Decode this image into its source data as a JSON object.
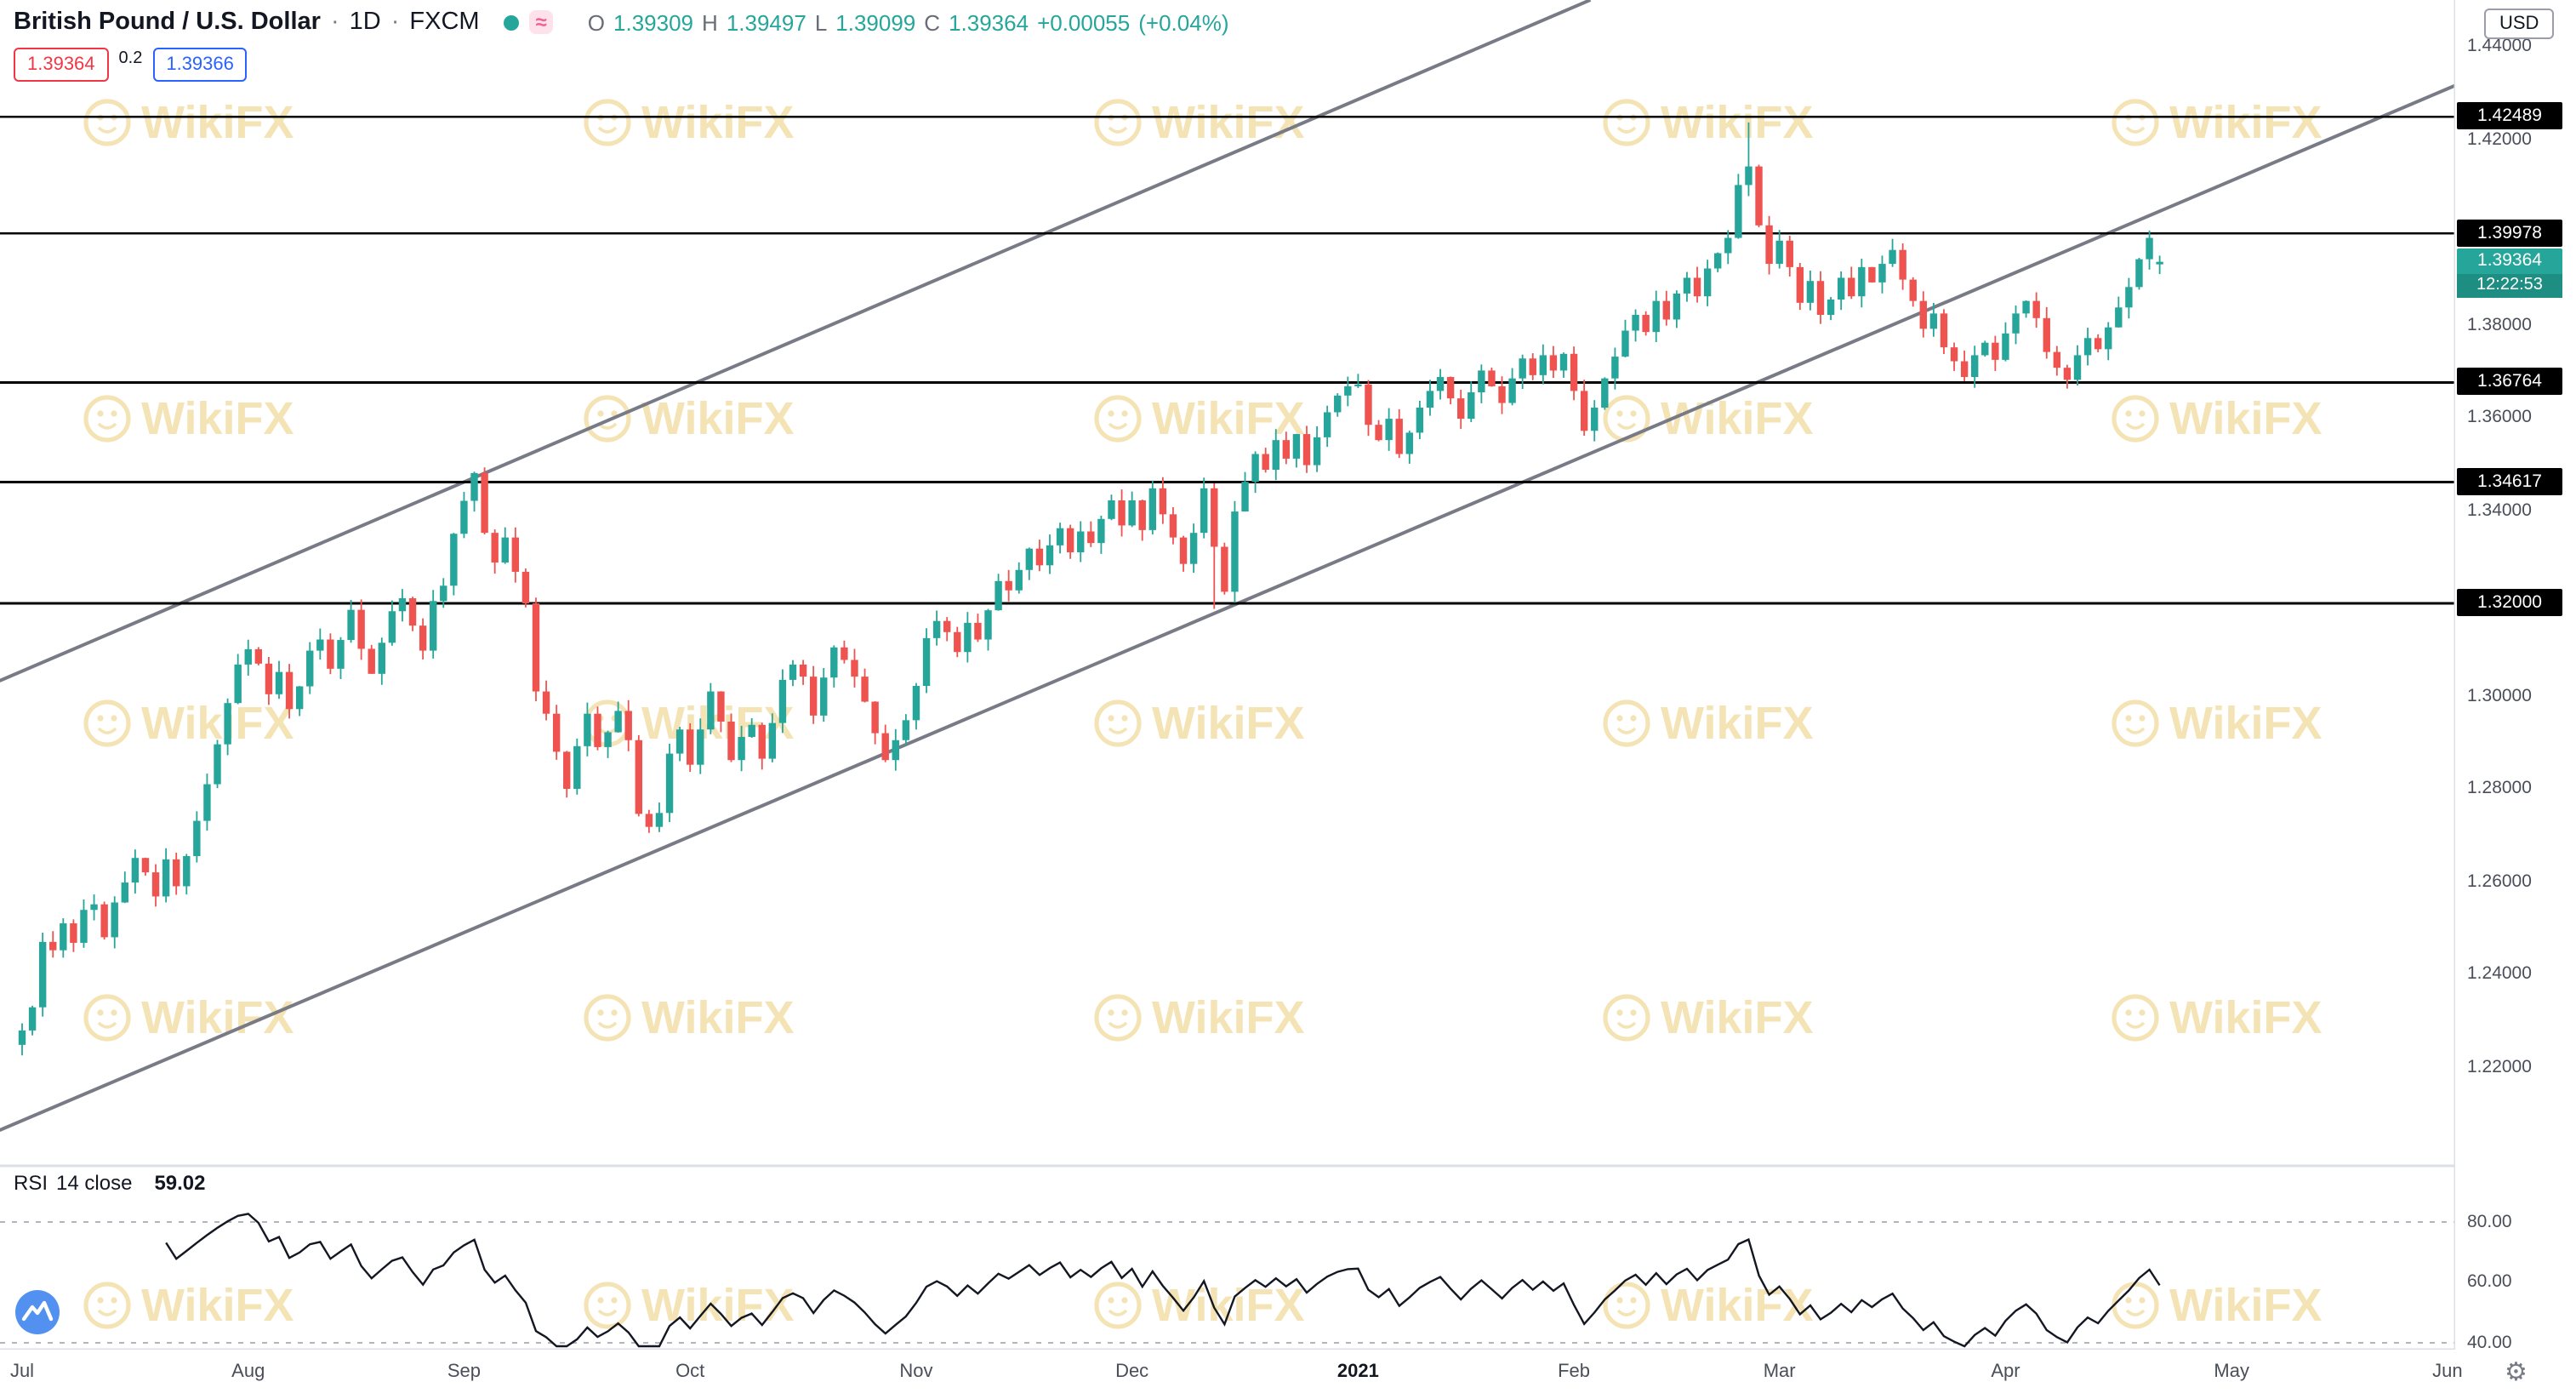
{
  "header": {
    "symbol": "British Pound / U.S. Dollar",
    "separator": "·",
    "interval": "1D",
    "exchange": "FXCM",
    "approx_symbol": "≈",
    "ohlc": {
      "o_label": "O",
      "open": "1.39309",
      "h_label": "H",
      "high": "1.39497",
      "l_label": "L",
      "low": "1.39099",
      "c_label": "C",
      "close": "1.39364",
      "change": "+0.00055",
      "change_pct": "(+0.04%)"
    },
    "sell": "1.39364",
    "spread": "0.2",
    "buy": "1.39366"
  },
  "axis_right": {
    "currency": "USD",
    "ticks": [
      {
        "label": "1.44000",
        "price": 1.44
      },
      {
        "label": "1.42000",
        "price": 1.42
      },
      {
        "label": "1.38000",
        "price": 1.38
      },
      {
        "label": "1.36000",
        "price": 1.36
      },
      {
        "label": "1.34000",
        "price": 1.34
      },
      {
        "label": "1.30000",
        "price": 1.3
      },
      {
        "label": "1.28000",
        "price": 1.28
      },
      {
        "label": "1.26000",
        "price": 1.26
      },
      {
        "label": "1.24000",
        "price": 1.24
      },
      {
        "label": "1.22000",
        "price": 1.22
      }
    ],
    "current": {
      "label": "1.39364",
      "countdown": "12:22:53",
      "price": 1.39364
    }
  },
  "time_axis": {
    "labels": [
      {
        "label": "Jul",
        "day": 0
      },
      {
        "label": "Aug",
        "day": 22
      },
      {
        "label": "Sep",
        "day": 43
      },
      {
        "label": "Oct",
        "day": 65
      },
      {
        "label": "Nov",
        "day": 87
      },
      {
        "label": "Dec",
        "day": 108
      },
      {
        "label": "2021",
        "day": 130,
        "bold": true
      },
      {
        "label": "Feb",
        "day": 151
      },
      {
        "label": "Mar",
        "day": 171
      },
      {
        "label": "Apr",
        "day": 193
      },
      {
        "label": "May",
        "day": 215
      },
      {
        "label": "Jun",
        "day": 236
      }
    ]
  },
  "rsi": {
    "title": "RSI",
    "params": "14 close",
    "value": "59.02",
    "grid": [
      {
        "label": "80.00",
        "v": 80,
        "dashed": true
      },
      {
        "label": "60.00",
        "v": 60,
        "dashed": false
      },
      {
        "label": "40.00",
        "v": 40,
        "dashed": true
      }
    ]
  },
  "watermark": {
    "text": "WikiFX",
    "color": "#f4e3b4"
  },
  "icons": {
    "gear": "⚙"
  },
  "colors": {
    "up": "#26a69a",
    "down": "#ef5350",
    "trend": "#787b86",
    "level": "#000000",
    "accent": "#26a69a"
  },
  "chart_data": {
    "type": "candlestick",
    "title": "British Pound / U.S. Dollar, 1D, FXCM",
    "x_range": "Jul 2020 - Jun 2021 (daily)",
    "y_range": [
      1.2013,
      1.4501
    ],
    "legend_position": "top-left",
    "grid": false,
    "first_open": 1.2248,
    "closes": [
      1.2279,
      1.2329,
      1.247,
      1.2452,
      1.251,
      1.2468,
      1.2539,
      1.2551,
      1.248,
      1.2555,
      1.2598,
      1.2651,
      1.262,
      1.2568,
      1.2648,
      1.259,
      1.2655,
      1.2731,
      1.281,
      1.2896,
      1.2985,
      1.3068,
      1.3101,
      1.307,
      1.3004,
      1.3052,
      1.2972,
      1.3021,
      1.3098,
      1.3122,
      1.3059,
      1.3121,
      1.3186,
      1.3102,
      1.3048,
      1.3115,
      1.3183,
      1.3211,
      1.3152,
      1.3098,
      1.3205,
      1.3238,
      1.335,
      1.3421,
      1.3481,
      1.3352,
      1.3288,
      1.3342,
      1.3268,
      1.32,
      1.301,
      1.2962,
      1.288,
      1.28,
      1.2892,
      1.2962,
      1.289,
      1.2922,
      1.2968,
      1.2905,
      1.2746,
      1.2718,
      1.2748,
      1.2876,
      1.2928,
      1.2852,
      1.2928,
      1.301,
      1.2945,
      1.2862,
      1.2912,
      1.2938,
      1.2865,
      1.2942,
      1.3035,
      1.3068,
      1.3042,
      1.2958,
      1.304,
      1.3105,
      1.3078,
      1.3042,
      1.2988,
      1.292,
      1.2862,
      1.2905,
      1.2948,
      1.3022,
      1.3125,
      1.3162,
      1.3138,
      1.3095,
      1.3158,
      1.3122,
      1.3185,
      1.3248,
      1.3228,
      1.3272,
      1.3318,
      1.3282,
      1.3325,
      1.3362,
      1.331,
      1.3355,
      1.333,
      1.3382,
      1.3422,
      1.3368,
      1.3422,
      1.3358,
      1.3448,
      1.3392,
      1.3342,
      1.3285,
      1.3352,
      1.3448,
      1.3322,
      1.3225,
      1.3398,
      1.3462,
      1.3522,
      1.3488,
      1.3552,
      1.3512,
      1.3565,
      1.3498,
      1.3558,
      1.3612,
      1.3648,
      1.3668,
      1.3672,
      1.3585,
      1.3552,
      1.3598,
      1.3522,
      1.3568,
      1.3622,
      1.3658,
      1.3688,
      1.3642,
      1.3598,
      1.3655,
      1.3702,
      1.3668,
      1.3632,
      1.3685,
      1.3728,
      1.3692,
      1.3735,
      1.3702,
      1.3738,
      1.3658,
      1.3572,
      1.3622,
      1.3685,
      1.3732,
      1.3788,
      1.3822,
      1.3785,
      1.3852,
      1.3812,
      1.3868,
      1.3902,
      1.3862,
      1.3922,
      1.3955,
      1.3988,
      1.4102,
      1.4142,
      1.4015,
      1.3932,
      1.3982,
      1.3925,
      1.3848,
      1.3895,
      1.3822,
      1.3855,
      1.3902,
      1.3862,
      1.3925,
      1.3892,
      1.3932,
      1.3962,
      1.3898,
      1.3852,
      1.3792,
      1.3825,
      1.3752,
      1.3722,
      1.3688,
      1.3735,
      1.3762,
      1.3725,
      1.3782,
      1.3825,
      1.3852,
      1.3815,
      1.3742,
      1.3708,
      1.3682,
      1.3735,
      1.3772,
      1.3748,
      1.3795,
      1.3838,
      1.3882,
      1.3942,
      1.3988,
      1.39364
    ],
    "wick_overrides": {
      "44": {
        "h": 1.3484
      },
      "61": {
        "l": 1.2705
      },
      "116": {
        "l": 1.3188
      },
      "168": {
        "h": 1.4237
      },
      "208": {
        "o": 1.39309,
        "h": 1.39497,
        "l": 1.39099,
        "c": 1.39364
      }
    },
    "levels": [
      {
        "price": 1.42489,
        "label": "1.42489"
      },
      {
        "price": 1.39978,
        "label": "1.39978"
      },
      {
        "price": 1.36764,
        "label": "1.36764"
      },
      {
        "price": 1.34617,
        "label": "1.34617"
      },
      {
        "price": 1.32,
        "label": "1.32000"
      }
    ],
    "trend_channel": [
      {
        "day1": -2.2,
        "price1": 1.3033,
        "day2": 152.6,
        "price2": 1.4501
      },
      {
        "day1": -2.2,
        "price1": 1.2064,
        "day2": 236.8,
        "price2": 1.4317
      }
    ],
    "indicator": {
      "name": "RSI",
      "length": 14,
      "source": "close",
      "last_value": 59.02
    }
  }
}
